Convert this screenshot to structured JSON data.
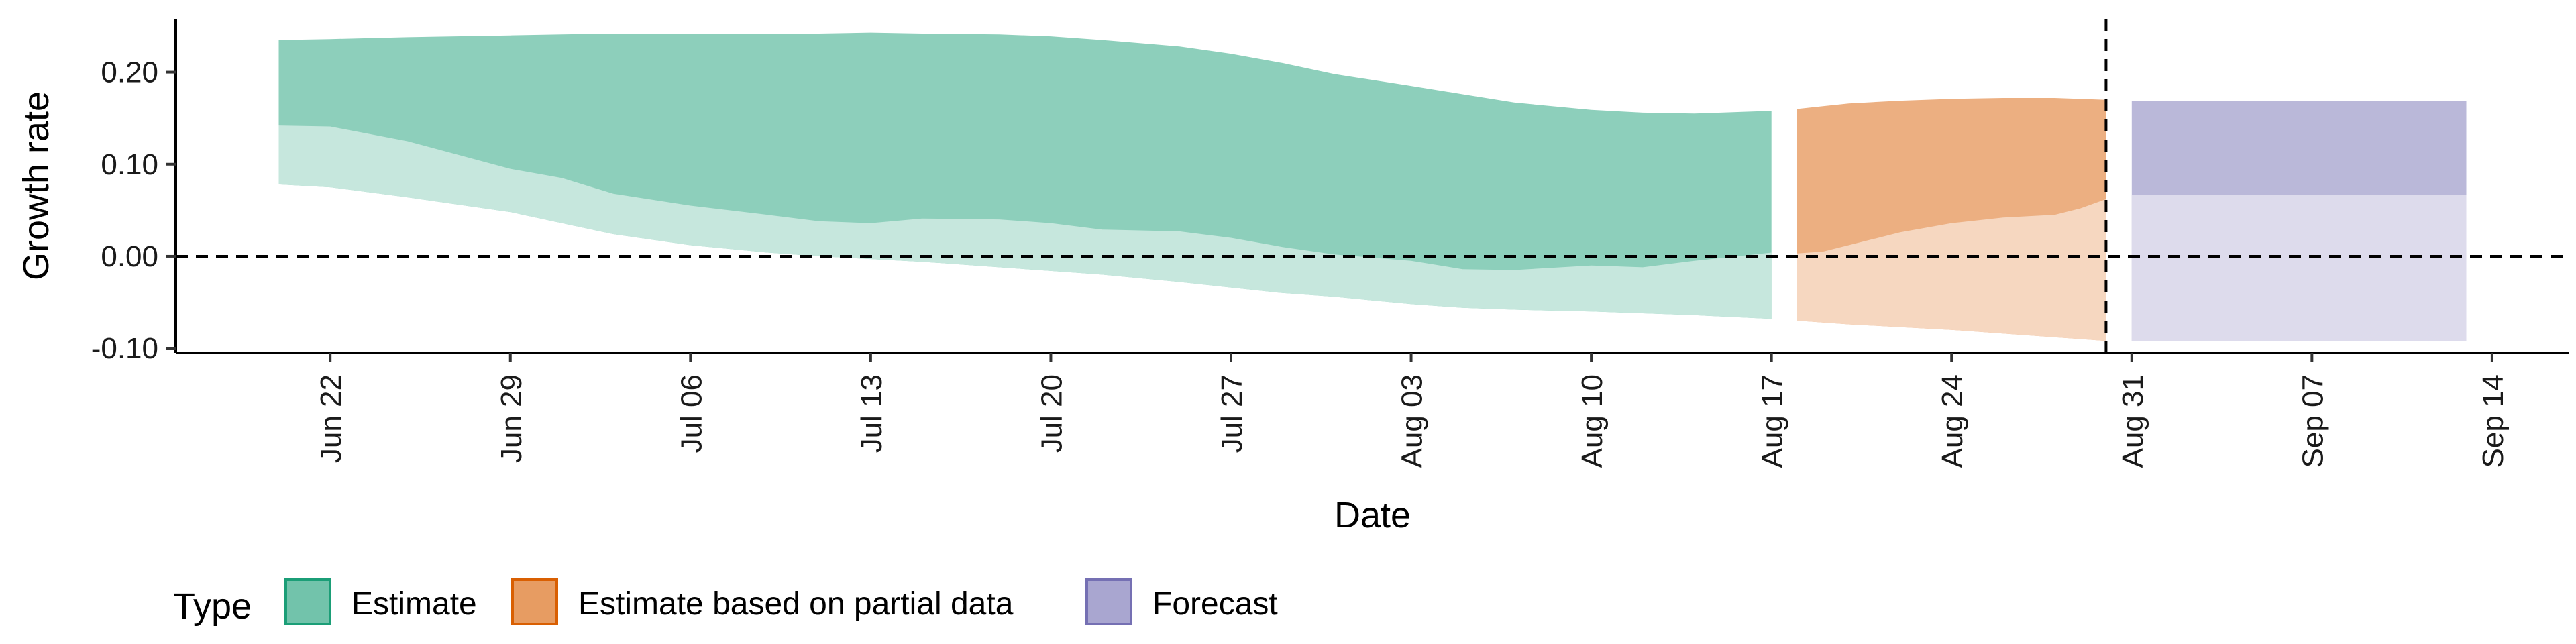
{
  "chart_data": {
    "type": "area",
    "xlabel": "Date",
    "ylabel": "Growth rate",
    "x_ticks": [
      "Jun 22",
      "Jun 29",
      "Jul 06",
      "Jul 13",
      "Jul 20",
      "Jul 27",
      "Aug 03",
      "Aug 10",
      "Aug 17",
      "Aug 24",
      "Aug 31",
      "Sep 07",
      "Sep 14"
    ],
    "y_ticks": [
      "-0.10",
      "0.00",
      "0.10",
      "0.20"
    ],
    "ylim": [
      -0.105,
      0.258
    ],
    "xlim": [
      "2020-06-16",
      "2020-09-17"
    ],
    "grid": false,
    "reference_lines": [
      {
        "axis": "y",
        "value": 0.0,
        "style": "dashed"
      },
      {
        "axis": "x",
        "value": "2020-08-30",
        "style": "dashed"
      }
    ],
    "legend": {
      "title": "Type",
      "position": "bottom-left",
      "items": [
        {
          "label": "Estimate",
          "color": "#1b9e77"
        },
        {
          "label": "Estimate based on partial data",
          "color": "#d95f02"
        },
        {
          "label": "Forecast",
          "color": "#7570b3"
        }
      ]
    },
    "series": [
      {
        "name": "Estimate",
        "color": "#1b9e77",
        "x": [
          "2020-06-20",
          "2020-06-22",
          "2020-06-25",
          "2020-06-29",
          "2020-07-01",
          "2020-07-03",
          "2020-07-06",
          "2020-07-09",
          "2020-07-11",
          "2020-07-13",
          "2020-07-15",
          "2020-07-18",
          "2020-07-20",
          "2020-07-22",
          "2020-07-25",
          "2020-07-27",
          "2020-07-29",
          "2020-07-31",
          "2020-08-03",
          "2020-08-05",
          "2020-08-07",
          "2020-08-10",
          "2020-08-12",
          "2020-08-14",
          "2020-08-17"
        ],
        "inner_upper": [
          0.142,
          0.141,
          0.125,
          0.095,
          0.085,
          0.068,
          0.055,
          0.045,
          0.038,
          0.036,
          0.041,
          0.04,
          0.036,
          0.029,
          0.027,
          0.02,
          0.01,
          0.002,
          -0.005,
          -0.014,
          -0.015,
          -0.01,
          -0.012,
          -0.005,
          0.004
        ],
        "inner_lower": [
          0.078,
          0.075,
          0.064,
          0.048,
          0.036,
          0.024,
          0.012,
          0.004,
          0.0,
          -0.003,
          -0.006,
          -0.012,
          -0.016,
          -0.02,
          -0.028,
          -0.034,
          -0.04,
          -0.044,
          -0.052,
          -0.056,
          -0.058,
          -0.06,
          -0.062,
          -0.064,
          -0.068
        ],
        "outer_upper": [
          0.235,
          0.236,
          0.238,
          0.24,
          0.241,
          0.242,
          0.242,
          0.242,
          0.242,
          0.243,
          0.242,
          0.241,
          0.239,
          0.235,
          0.228,
          0.22,
          0.21,
          0.198,
          0.185,
          0.176,
          0.167,
          0.159,
          0.156,
          0.155,
          0.158
        ],
        "outer_lower": [
          0.078,
          0.075,
          0.064,
          0.048,
          0.036,
          0.024,
          0.012,
          0.004,
          0.0,
          -0.003,
          -0.006,
          -0.012,
          -0.016,
          -0.02,
          -0.028,
          -0.034,
          -0.04,
          -0.044,
          -0.052,
          -0.056,
          -0.058,
          -0.06,
          -0.062,
          -0.064,
          -0.068
        ]
      },
      {
        "name": "Estimate based on partial data",
        "color": "#d95f02",
        "x": [
          "2020-08-18",
          "2020-08-19",
          "2020-08-20",
          "2020-08-22",
          "2020-08-24",
          "2020-08-26",
          "2020-08-28",
          "2020-08-29",
          "2020-08-30"
        ],
        "inner_upper": [
          0.003,
          0.005,
          0.012,
          0.026,
          0.036,
          0.042,
          0.045,
          0.052,
          0.062
        ],
        "inner_lower": [
          -0.07,
          -0.072,
          -0.074,
          -0.077,
          -0.08,
          -0.084,
          -0.088,
          -0.09,
          -0.092
        ],
        "outer_upper": [
          0.16,
          0.163,
          0.166,
          0.169,
          0.171,
          0.172,
          0.172,
          0.171,
          0.17
        ],
        "outer_lower": [
          -0.07,
          -0.072,
          -0.074,
          -0.077,
          -0.08,
          -0.084,
          -0.088,
          -0.09,
          -0.092
        ]
      },
      {
        "name": "Forecast",
        "color": "#7570b3",
        "x": [
          "2020-08-31",
          "2020-09-13"
        ],
        "inner_upper": [
          0.067,
          0.067
        ],
        "inner_lower": [
          -0.092,
          -0.092
        ],
        "outer_upper": [
          0.169,
          0.169
        ],
        "outer_lower": [
          -0.092,
          -0.092
        ]
      }
    ]
  }
}
